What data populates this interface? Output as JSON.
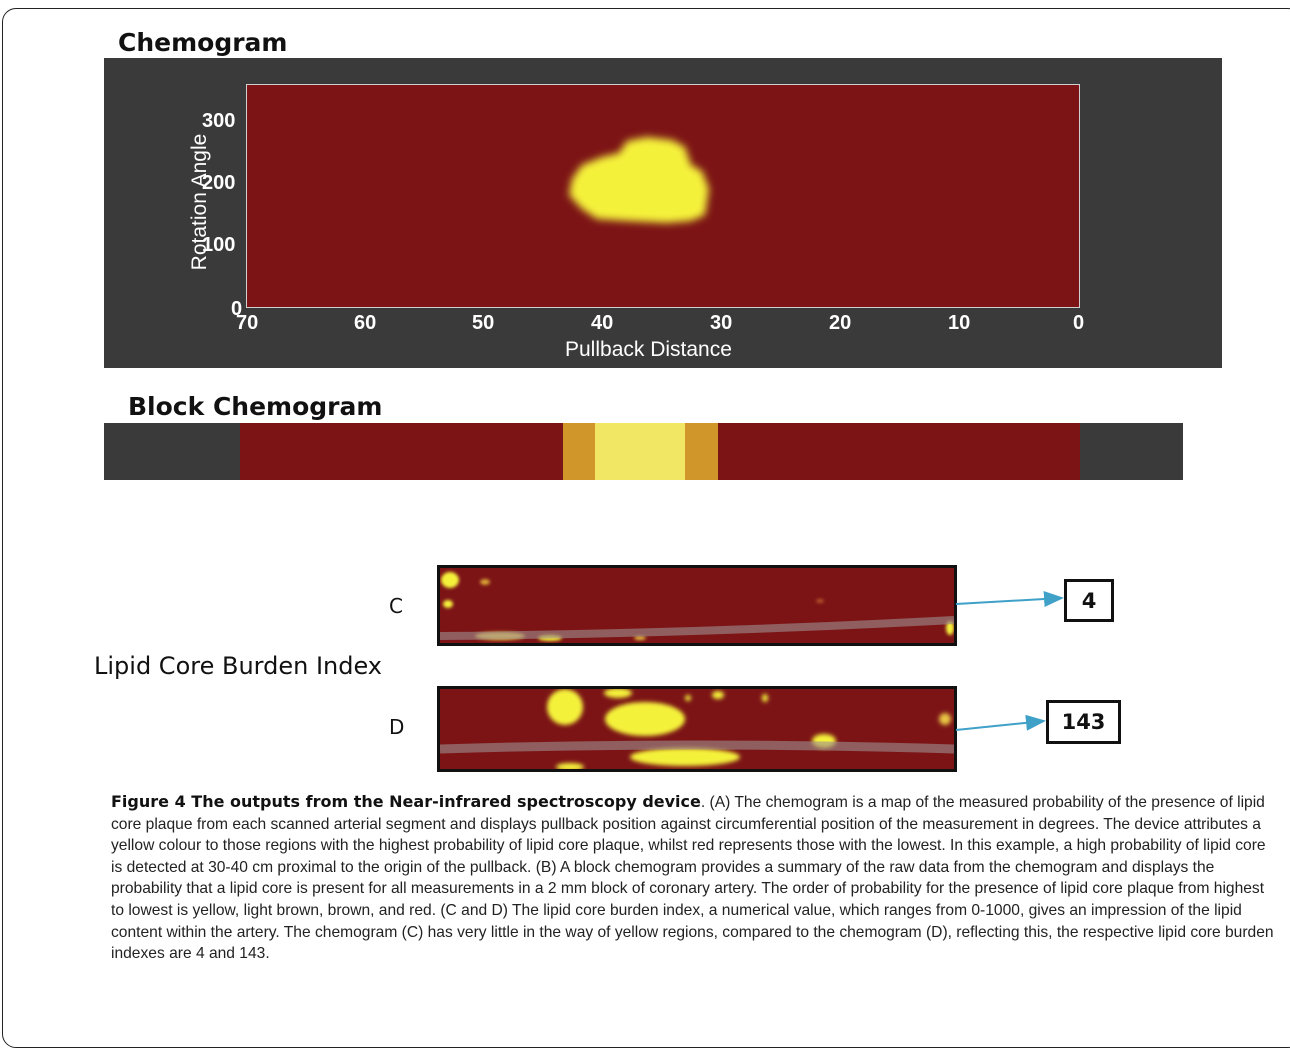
{
  "figure": {
    "panel_a_title": "Chemogram",
    "panel_b_title": "Block Chemogram",
    "lcbi_title": "Lipid Core Burden Index",
    "panel_c_letter": "C",
    "panel_d_letter": "D",
    "lcbi_c_value": "4",
    "lcbi_d_value": "143"
  },
  "chart_data": [
    {
      "type": "heatmap",
      "title": "Chemogram",
      "xlabel": "Pullback Distance",
      "ylabel": "Rotation Angle",
      "xlim": [
        70,
        0
      ],
      "ylim": [
        0,
        360
      ],
      "x_ticks": [
        "70",
        "60",
        "50",
        "40",
        "30",
        "20",
        "10",
        "0"
      ],
      "y_ticks": [
        "0",
        "100",
        "200",
        "300"
      ],
      "colors": {
        "background": "#7c1416",
        "high": "#f4f13a",
        "panel": "#3a3a3a"
      },
      "regions": [
        {
          "label": "high probability lipid core",
          "x_range": [
            30,
            43
          ],
          "y_range": [
            150,
            265
          ]
        }
      ]
    },
    {
      "type": "heatmap",
      "title": "Block Chemogram",
      "colors_order": [
        "yellow",
        "light brown",
        "brown",
        "red"
      ],
      "blocks": [
        {
          "x_range": [
            70,
            43
          ],
          "color": "#7c1416"
        },
        {
          "x_range": [
            43,
            40.5
          ],
          "color": "#d1962a"
        },
        {
          "x_range": [
            40.5,
            33.5
          ],
          "color": "#f2e765"
        },
        {
          "x_range": [
            33.5,
            31
          ],
          "color": "#d1962a"
        },
        {
          "x_range": [
            31,
            0
          ],
          "color": "#7c1416"
        }
      ]
    }
  ],
  "caption": {
    "title": "Figure 4 The outputs from the Near-infrared spectroscopy device",
    "body": ". (A) The chemogram is a map of the measured probability of the presence of lipid core plaque from each scanned arterial segment and displays pullback position against circumferential position of the measurement in degrees. The device attributes a yellow colour to those regions with the highest probability of lipid core plaque, whilst red represents those with the lowest. In this example, a high probability of lipid core is detected at 30-40 cm proximal to the origin of the pullback. (B) A block chemogram provides a summary of the raw data from the chemogram and displays the probability that a lipid core is present for all measurements in a 2 mm block of coronary artery. The order of probability for the presence of lipid core plaque from highest to lowest is yellow, light brown, brown, and red. (C and D) The lipid core burden index, a numerical value, which ranges from 0-1000, gives an impression of the lipid content within the artery. The chemogram (C) has very little in the way of yellow regions, compared to the chemogram (D), reflecting this, the respective lipid core burden indexes are 4 and 143."
  }
}
